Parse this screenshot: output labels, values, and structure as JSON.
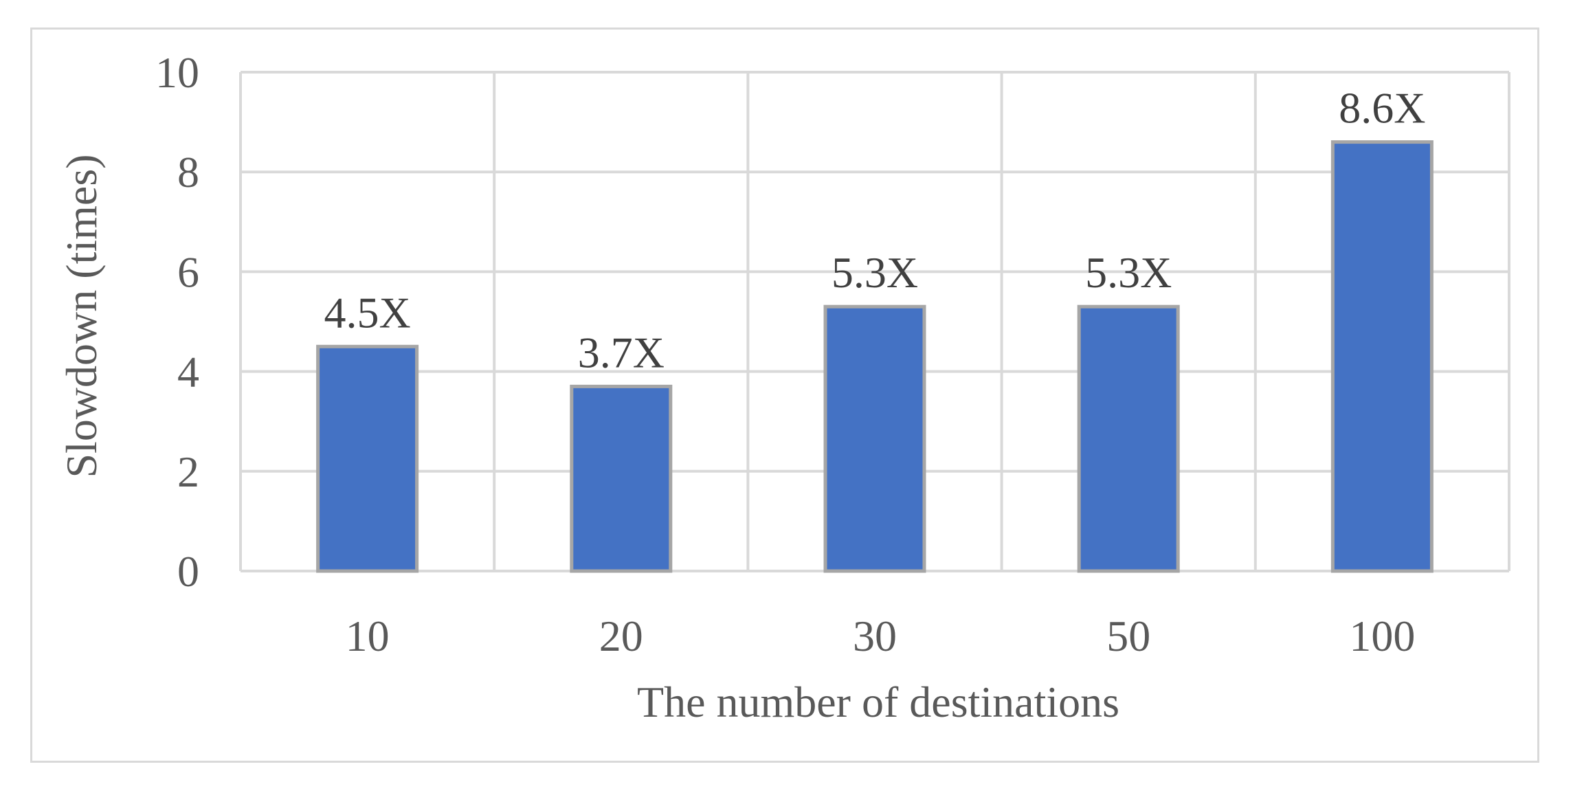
{
  "chart_data": {
    "type": "bar",
    "categories": [
      "10",
      "20",
      "30",
      "50",
      "100"
    ],
    "values": [
      4.5,
      3.7,
      5.3,
      5.3,
      8.6
    ],
    "data_labels": [
      "4.5X",
      "3.7X",
      "5.3X",
      "5.3X",
      "8.6X"
    ],
    "title": "",
    "xlabel": "The number of destinations",
    "ylabel": "Slowdown (times)",
    "ylim": [
      0,
      10
    ],
    "yticks": [
      "0",
      "2",
      "4",
      "6",
      "8",
      "10"
    ],
    "grid": "both",
    "legend": "none",
    "bar_color": "#4472c4",
    "bar_edge_color": "#a6a6a6",
    "grid_color": "#d9d9d9"
  }
}
